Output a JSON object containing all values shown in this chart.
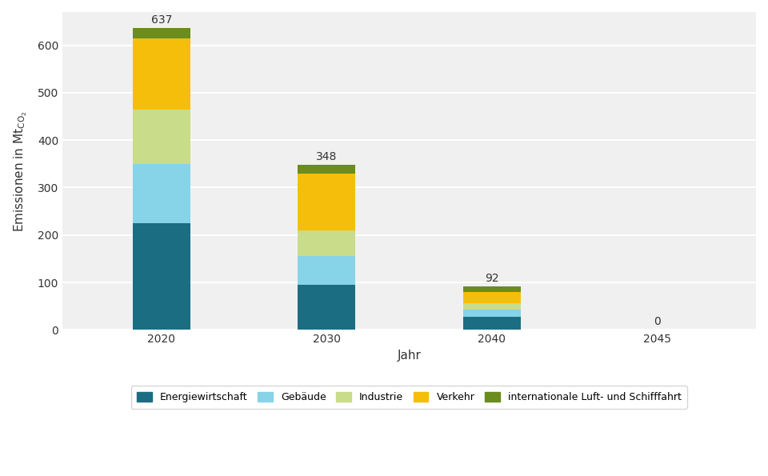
{
  "years": [
    "2020",
    "2030",
    "2040",
    "2045"
  ],
  "categories": [
    "Energiewirtschaft",
    "Gebäude",
    "Industrie",
    "Verkehr",
    "internationale Luft- und Schifffahrt"
  ],
  "colors": [
    "#1b6d82",
    "#87d3e8",
    "#c9dc8a",
    "#f5be0b",
    "#6b8c1e"
  ],
  "values": {
    "Energiewirtschaft": [
      225,
      95,
      28,
      0
    ],
    "Gebäude": [
      125,
      60,
      14,
      0
    ],
    "Industrie": [
      115,
      55,
      14,
      0
    ],
    "Verkehr": [
      150,
      120,
      23,
      0
    ],
    "internationale Luft- und Schifffahrt": [
      22,
      18,
      13,
      0
    ]
  },
  "totals": [
    637,
    348,
    92,
    0
  ],
  "xlabel": "Jahr",
  "bar_width": 0.35,
  "ylim": [
    0,
    670
  ],
  "yticks": [
    0,
    100,
    200,
    300,
    400,
    500,
    600
  ],
  "background_color": "#ffffff",
  "plot_bg_color": "#f0f0f0",
  "grid_color": "#ffffff",
  "label_fontsize": 10,
  "axis_fontsize": 11
}
